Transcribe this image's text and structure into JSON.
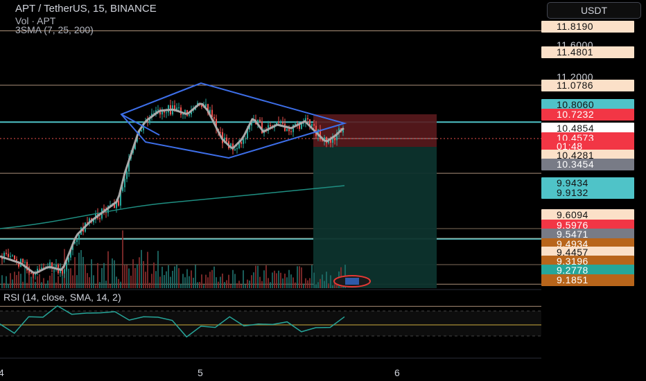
{
  "header": {
    "symbol_line": "APT / TetherUS, 15, BINANCE",
    "vol_line": "Vol · APT",
    "ma_line": "3SMA (7, 25, 200)",
    "currency_button": "USDT"
  },
  "rsi": {
    "legend": "RSI (14, close, SMA, 14, 2)"
  },
  "colors": {
    "background": "#000000",
    "green_candle": "#26a69a",
    "red_candle": "#ef5350",
    "pattern_blue": "#3d6ee8",
    "teal_line": "#4fc3c8",
    "ma_long": "#1f8f82",
    "ma_short": "#a9a9a9",
    "short_loss_zone": "#5a1a1d",
    "short_profit_zone": "#0d332d",
    "rsi_line": "#26a69a",
    "rsi_band": "#8f7a2e"
  },
  "price_scale": {
    "ticks": [
      "11.6000",
      "11.2000"
    ],
    "labels": [
      {
        "text": "11.8190",
        "bg": "#fbe0c8",
        "fg": "#131313"
      },
      {
        "text": "11.4801",
        "bg": "#fbe0c8",
        "fg": "#131313"
      },
      {
        "text": "11.0786",
        "bg": "#fbe0c8",
        "fg": "#131313"
      },
      {
        "text": "10.8060",
        "bg": "#4fc3c8",
        "fg": "#131313"
      },
      {
        "text": "10.7232",
        "bg": "#f23645",
        "fg": "#ffffff"
      },
      {
        "text": "10.4854",
        "bg": "#ffffff",
        "fg": "#131313"
      },
      {
        "text": "10.4573",
        "bg": "#f23645",
        "fg": "#ffffff"
      },
      {
        "text": "01:48",
        "bg": "#f23645",
        "fg": "#ffffff"
      },
      {
        "text": "10.4281",
        "bg": "#fbe0c8",
        "fg": "#131313"
      },
      {
        "text": "10.3454",
        "bg": "#787b86",
        "fg": "#ffffff"
      },
      {
        "text": "9.9434",
        "bg": "#4fc3c8",
        "fg": "#131313"
      },
      {
        "text": "9.9132",
        "bg": "#4fc3c8",
        "fg": "#131313"
      },
      {
        "text": "9.6094",
        "bg": "#fbe0c8",
        "fg": "#131313"
      },
      {
        "text": "9.5976",
        "bg": "#f23645",
        "fg": "#ffffff"
      },
      {
        "text": "9.5471",
        "bg": "#787b86",
        "fg": "#ffffff"
      },
      {
        "text": "9.4934",
        "bg": "#b8651b",
        "fg": "#ffffff"
      },
      {
        "text": "9.4457",
        "bg": "#fbe0c8",
        "fg": "#131313"
      },
      {
        "text": "9.3196",
        "bg": "#b8651b",
        "fg": "#ffffff"
      },
      {
        "text": "9.2778",
        "bg": "#26a69a",
        "fg": "#ffffff"
      },
      {
        "text": "9.1851",
        "bg": "#b8651b",
        "fg": "#ffffff"
      }
    ]
  },
  "time_axis": {
    "ticks": [
      "4",
      "5",
      "6"
    ]
  },
  "chart_data": {
    "type": "line",
    "title": "APT / TetherUS, 15, BINANCE",
    "xlabel": "",
    "ylabel": "",
    "x_ticks": [
      "4",
      "5",
      "6"
    ],
    "y_ticks": [
      11.6,
      11.2
    ],
    "horizontal_levels": [
      11.819,
      11.4801,
      11.0786,
      10.806,
      10.4281,
      9.9434,
      9.6094,
      9.4457
    ],
    "price_close_approx": [
      9.3,
      9.26,
      9.36,
      9.52,
      9.6,
      9.95,
      10.2,
      10.45,
      10.6,
      10.68,
      10.72,
      10.9,
      10.7,
      10.75,
      10.98,
      10.86,
      10.72,
      10.55,
      10.4,
      10.48,
      10.65,
      10.7,
      10.58,
      10.6,
      10.52,
      10.58,
      10.55,
      10.35,
      10.4,
      10.48
    ],
    "rsi_approx": [
      45,
      40,
      55,
      62,
      70,
      66,
      60,
      68,
      62,
      58,
      55,
      62,
      50,
      35,
      42,
      48,
      55,
      50,
      45,
      52,
      48,
      42,
      40,
      48,
      55
    ],
    "last_price": 10.4573,
    "countdown": "01:48"
  }
}
